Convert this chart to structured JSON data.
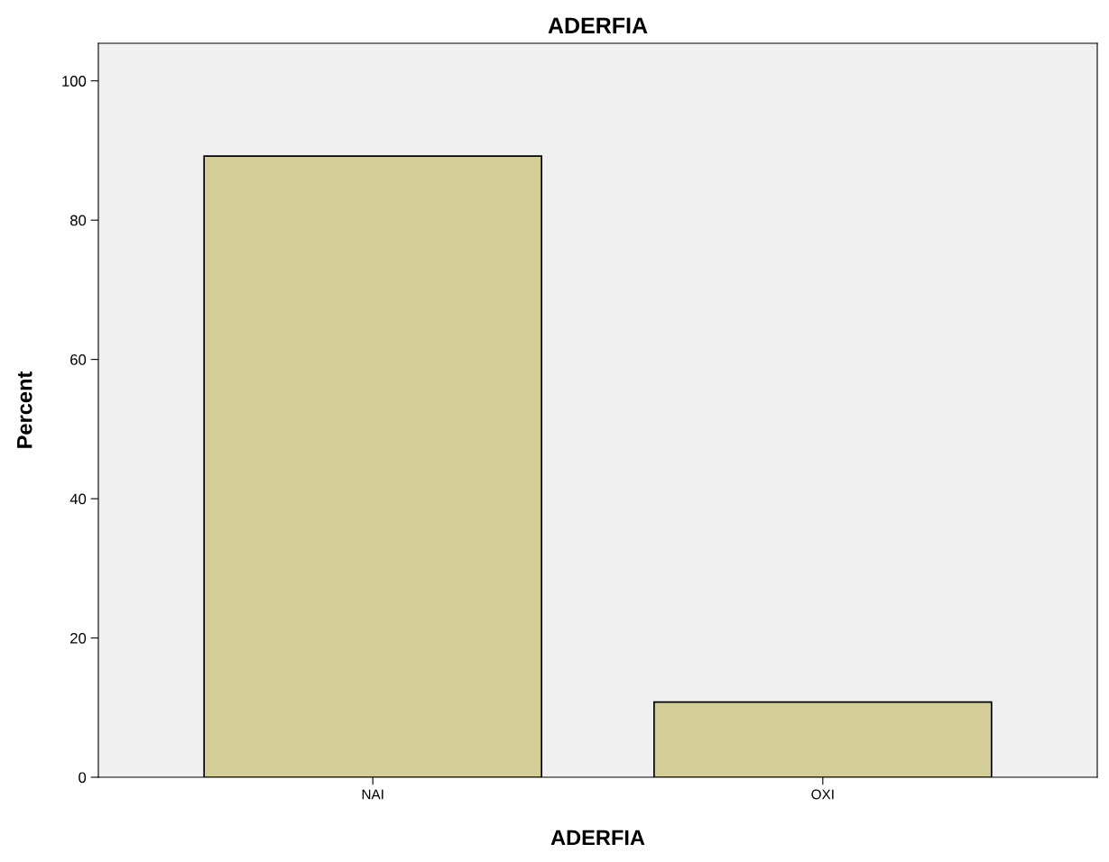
{
  "chart_data": {
    "type": "bar",
    "title": "ADERFIA",
    "xlabel": "ADERFIA",
    "ylabel": "Percent",
    "categories": [
      "NAI",
      "OXI"
    ],
    "values": [
      89.2,
      10.8
    ],
    "color": "#d3cd98",
    "ylim": [
      0,
      105.4
    ],
    "yticks": [
      0,
      20,
      40,
      60,
      80,
      100
    ],
    "grid": false,
    "legend": false
  }
}
